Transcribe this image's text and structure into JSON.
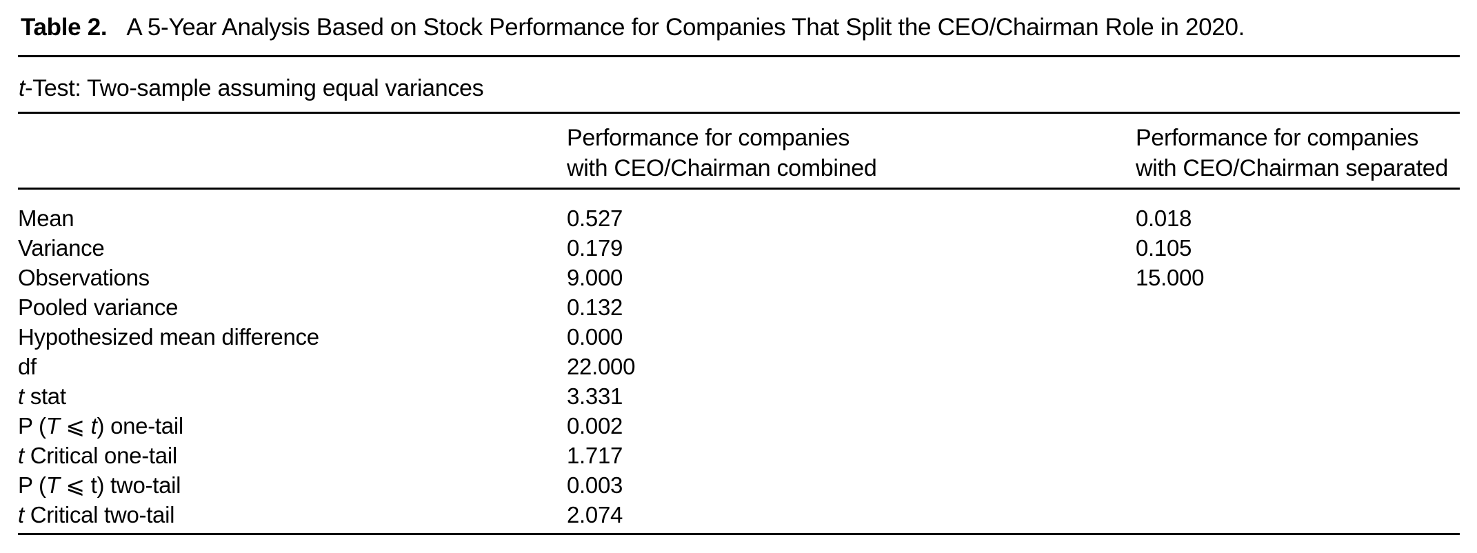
{
  "page": {
    "background_color": "#ffffff",
    "text_color": "#000000",
    "rule_color": "#000000"
  },
  "title": {
    "label": "Table 2.",
    "text": "A 5-Year Analysis Based on Stock Performance for Companies That Split the CEO/Chairman Role in 2020."
  },
  "subtitle": {
    "parts": [
      {
        "text": "t",
        "italic": true
      },
      {
        "text": "-Test: Two-sample assuming equal variances",
        "italic": false
      }
    ]
  },
  "table": {
    "col2_header": {
      "line1": "Performance for companies",
      "line2": "with CEO/Chairman combined"
    },
    "col3_header": {
      "line1": "Performance for companies",
      "line2": "with CEO/Chairman separated"
    },
    "rows": [
      {
        "label_parts": [
          {
            "text": "Mean",
            "italic": false
          }
        ],
        "combined": "0.527",
        "separated": "0.018"
      },
      {
        "label_parts": [
          {
            "text": "Variance",
            "italic": false
          }
        ],
        "combined": "0.179",
        "separated": "0.105"
      },
      {
        "label_parts": [
          {
            "text": "Observations",
            "italic": false
          }
        ],
        "combined": "9.000",
        "separated": "15.000"
      },
      {
        "label_parts": [
          {
            "text": "Pooled variance",
            "italic": false
          }
        ],
        "combined": "0.132",
        "separated": ""
      },
      {
        "label_parts": [
          {
            "text": "Hypothesized mean difference",
            "italic": false
          }
        ],
        "combined": "0.000",
        "separated": ""
      },
      {
        "label_parts": [
          {
            "text": "df",
            "italic": false
          }
        ],
        "combined": "22.000",
        "separated": ""
      },
      {
        "label_parts": [
          {
            "text": "t",
            "italic": true
          },
          {
            "text": " stat",
            "italic": false
          }
        ],
        "combined": "3.331",
        "separated": ""
      },
      {
        "label_parts": [
          {
            "text": "P (",
            "italic": false
          },
          {
            "text": "T ⩽ t",
            "italic": true
          },
          {
            "text": ") one-tail",
            "italic": false
          }
        ],
        "combined": "0.002",
        "separated": ""
      },
      {
        "label_parts": [
          {
            "text": "t",
            "italic": true
          },
          {
            "text": " Critical one-tail",
            "italic": false
          }
        ],
        "combined": "1.717",
        "separated": ""
      },
      {
        "label_parts": [
          {
            "text": "P (",
            "italic": false
          },
          {
            "text": "T",
            "italic": true
          },
          {
            "text": " ⩽ t) two-tail",
            "italic": false
          }
        ],
        "combined": "0.003",
        "separated": ""
      },
      {
        "label_parts": [
          {
            "text": "t",
            "italic": true
          },
          {
            "text": " Critical two-tail",
            "italic": false
          }
        ],
        "combined": "2.074",
        "separated": ""
      }
    ]
  }
}
